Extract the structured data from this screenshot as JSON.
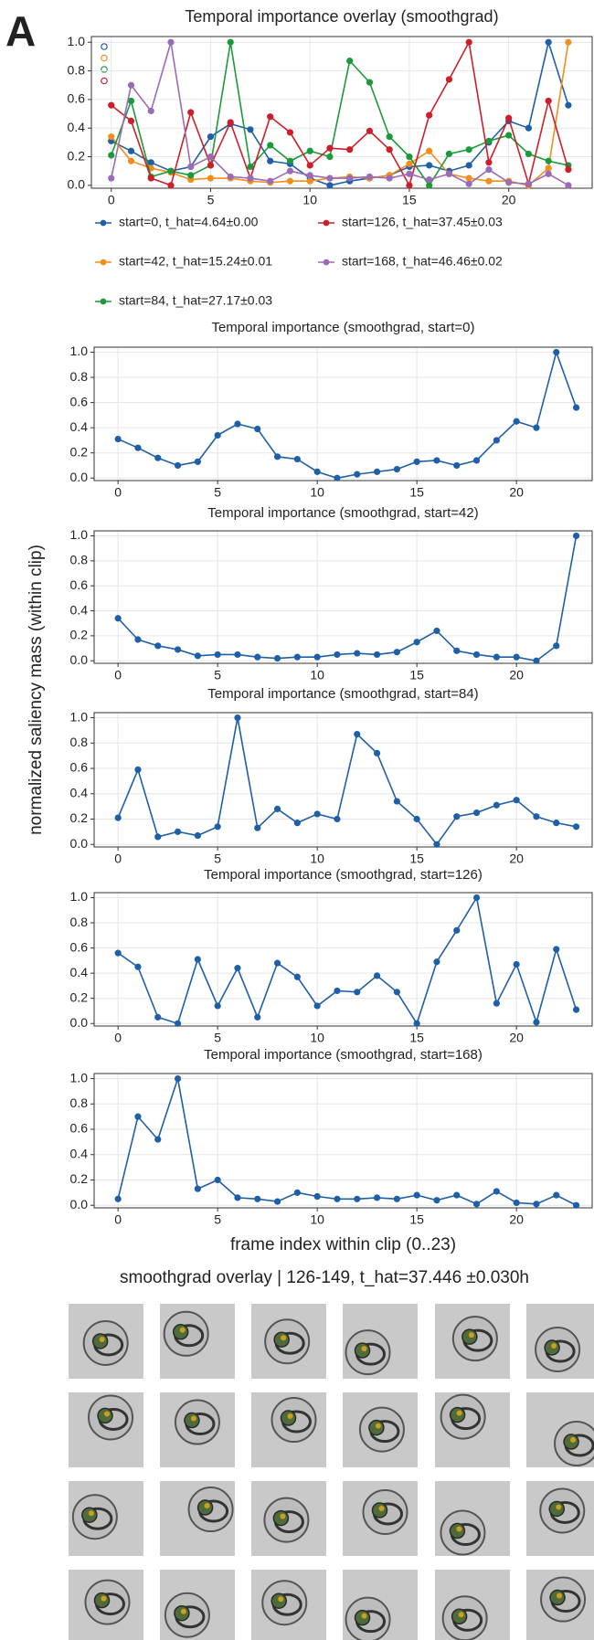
{
  "panel_label": "A",
  "ylabel": "normalized saliency mass (within clip)",
  "image_grid": {
    "title": "smoothgrad overlay | 126-149, t_hat=37.446 ±0.030h"
  },
  "chart_data": [
    {
      "type": "line",
      "title": "Temporal importance overlay (smoothgrad)",
      "x": [
        0,
        1,
        2,
        3,
        4,
        5,
        6,
        7,
        8,
        9,
        10,
        11,
        12,
        13,
        14,
        15,
        16,
        17,
        18,
        19,
        20,
        21,
        22,
        23
      ],
      "series": [
        {
          "name": "start=0, t_hat=4.64±0.00",
          "color": "#1f5fa8",
          "values": [
            0.31,
            0.24,
            0.16,
            0.1,
            0.13,
            0.34,
            0.43,
            0.39,
            0.17,
            0.15,
            0.05,
            0.0,
            0.03,
            0.05,
            0.07,
            0.13,
            0.14,
            0.1,
            0.14,
            0.3,
            0.45,
            0.4,
            1.0,
            0.56
          ]
        },
        {
          "name": "start=42, t_hat=15.24±0.01",
          "color": "#f28e1c",
          "values": [
            0.34,
            0.17,
            0.12,
            0.09,
            0.04,
            0.05,
            0.05,
            0.03,
            0.02,
            0.03,
            0.03,
            0.05,
            0.06,
            0.05,
            0.07,
            0.15,
            0.24,
            0.08,
            0.05,
            0.03,
            0.03,
            0.0,
            0.12,
            1.0
          ]
        },
        {
          "name": "start=84, t_hat=27.17±0.03",
          "color": "#1a9a3a",
          "values": [
            0.21,
            0.59,
            0.06,
            0.1,
            0.07,
            0.14,
            1.0,
            0.13,
            0.28,
            0.17,
            0.24,
            0.2,
            0.87,
            0.72,
            0.34,
            0.2,
            0.0,
            0.22,
            0.25,
            0.31,
            0.35,
            0.22,
            0.17,
            0.14
          ]
        },
        {
          "name": "start=126, t_hat=37.45±0.03",
          "color": "#cc1f2a",
          "values": [
            0.56,
            0.45,
            0.05,
            0.0,
            0.51,
            0.14,
            0.44,
            0.05,
            0.48,
            0.37,
            0.14,
            0.26,
            0.25,
            0.38,
            0.25,
            0.0,
            0.49,
            0.74,
            1.0,
            0.16,
            0.47,
            0.01,
            0.59,
            0.11
          ]
        },
        {
          "name": "start=168, t_hat=46.46±0.02",
          "color": "#9b6bb8",
          "values": [
            0.05,
            0.7,
            0.52,
            1.0,
            0.13,
            0.2,
            0.06,
            0.05,
            0.03,
            0.1,
            0.07,
            0.05,
            0.05,
            0.06,
            0.05,
            0.08,
            0.04,
            0.08,
            0.01,
            0.11,
            0.02,
            0.01,
            0.08,
            0.0
          ]
        }
      ],
      "xlim": [
        -1.0,
        24.2
      ],
      "ylim": [
        -0.02,
        1.04
      ],
      "xticks": [
        0,
        5,
        10,
        15,
        20
      ],
      "yticks": [
        {
          "value": 0,
          "label": "0.0"
        },
        0.2,
        0.4,
        0.6,
        0.8,
        {
          "value": 1,
          "label": "1.0"
        }
      ],
      "grid": true,
      "legend": "bottom"
    },
    {
      "type": "line",
      "title": "Temporal importance (smoothgrad, start=0)",
      "color": "#1f5fa8",
      "x": [
        0,
        1,
        2,
        3,
        4,
        5,
        6,
        7,
        8,
        9,
        10,
        11,
        12,
        13,
        14,
        15,
        16,
        17,
        18,
        19,
        20,
        21,
        22,
        23
      ],
      "values": [
        0.31,
        0.24,
        0.16,
        0.1,
        0.13,
        0.34,
        0.43,
        0.39,
        0.17,
        0.15,
        0.05,
        0.0,
        0.03,
        0.05,
        0.07,
        0.13,
        0.14,
        0.1,
        0.14,
        0.3,
        0.45,
        0.4,
        1.0,
        0.56
      ],
      "xlim": [
        -1.2,
        23.8
      ],
      "ylim": [
        -0.02,
        1.04
      ],
      "xticks": [
        0,
        5,
        10,
        15,
        20
      ],
      "yticks": [
        {
          "value": 0,
          "label": "0.0"
        },
        0.2,
        0.4,
        0.6,
        0.8,
        {
          "value": 1,
          "label": "1.0"
        }
      ],
      "grid": true
    },
    {
      "type": "line",
      "title": "Temporal importance (smoothgrad, start=42)",
      "color": "#1f5fa8",
      "x": [
        0,
        1,
        2,
        3,
        4,
        5,
        6,
        7,
        8,
        9,
        10,
        11,
        12,
        13,
        14,
        15,
        16,
        17,
        18,
        19,
        20,
        21,
        22,
        23
      ],
      "values": [
        0.34,
        0.17,
        0.12,
        0.09,
        0.04,
        0.05,
        0.05,
        0.03,
        0.02,
        0.03,
        0.03,
        0.05,
        0.06,
        0.05,
        0.07,
        0.15,
        0.24,
        0.08,
        0.05,
        0.03,
        0.03,
        0.0,
        0.12,
        1.0
      ],
      "xlim": [
        -1.2,
        23.8
      ],
      "ylim": [
        -0.02,
        1.04
      ],
      "xticks": [
        0,
        5,
        10,
        15,
        20
      ],
      "yticks": [
        {
          "value": 0,
          "label": "0.0"
        },
        0.2,
        0.4,
        0.6,
        0.8,
        {
          "value": 1,
          "label": "1.0"
        }
      ],
      "grid": true
    },
    {
      "type": "line",
      "title": "Temporal importance (smoothgrad, start=84)",
      "color": "#1f5fa8",
      "x": [
        0,
        1,
        2,
        3,
        4,
        5,
        6,
        7,
        8,
        9,
        10,
        11,
        12,
        13,
        14,
        15,
        16,
        17,
        18,
        19,
        20,
        21,
        22,
        23
      ],
      "values": [
        0.21,
        0.59,
        0.06,
        0.1,
        0.07,
        0.14,
        1.0,
        0.13,
        0.28,
        0.17,
        0.24,
        0.2,
        0.87,
        0.72,
        0.34,
        0.2,
        0.0,
        0.22,
        0.25,
        0.31,
        0.35,
        0.22,
        0.17,
        0.14
      ],
      "xlim": [
        -1.2,
        23.8
      ],
      "ylim": [
        -0.02,
        1.04
      ],
      "xticks": [
        0,
        5,
        10,
        15,
        20
      ],
      "yticks": [
        {
          "value": 0,
          "label": "0.0"
        },
        0.2,
        0.4,
        0.6,
        0.8,
        {
          "value": 1,
          "label": "1.0"
        }
      ],
      "grid": true
    },
    {
      "type": "line",
      "title": "Temporal importance (smoothgrad, start=126)",
      "color": "#1f5fa8",
      "x": [
        0,
        1,
        2,
        3,
        4,
        5,
        6,
        7,
        8,
        9,
        10,
        11,
        12,
        13,
        14,
        15,
        16,
        17,
        18,
        19,
        20,
        21,
        22,
        23
      ],
      "values": [
        0.56,
        0.45,
        0.05,
        0.0,
        0.51,
        0.14,
        0.44,
        0.05,
        0.48,
        0.37,
        0.14,
        0.26,
        0.25,
        0.38,
        0.25,
        0.0,
        0.49,
        0.74,
        1.0,
        0.16,
        0.47,
        0.01,
        0.59,
        0.11
      ],
      "xlim": [
        -1.2,
        23.8
      ],
      "ylim": [
        -0.02,
        1.04
      ],
      "xticks": [
        0,
        5,
        10,
        15,
        20
      ],
      "yticks": [
        {
          "value": 0,
          "label": "0.0"
        },
        0.2,
        0.4,
        0.6,
        0.8,
        {
          "value": 1,
          "label": "1.0"
        }
      ],
      "grid": true
    },
    {
      "type": "line",
      "title": "Temporal importance (smoothgrad, start=168)",
      "color": "#1f5fa8",
      "x": [
        0,
        1,
        2,
        3,
        4,
        5,
        6,
        7,
        8,
        9,
        10,
        11,
        12,
        13,
        14,
        15,
        16,
        17,
        18,
        19,
        20,
        21,
        22,
        23
      ],
      "values": [
        0.05,
        0.7,
        0.52,
        1.0,
        0.13,
        0.2,
        0.06,
        0.05,
        0.03,
        0.1,
        0.07,
        0.05,
        0.05,
        0.06,
        0.05,
        0.08,
        0.04,
        0.08,
        0.01,
        0.11,
        0.02,
        0.01,
        0.08,
        0.0
      ],
      "xlim": [
        -1.2,
        23.8
      ],
      "ylim": [
        -0.02,
        1.04
      ],
      "xticks": [
        0,
        5,
        10,
        15,
        20
      ],
      "yticks": [
        {
          "value": 0,
          "label": "0.0"
        },
        0.2,
        0.4,
        0.6,
        0.8,
        {
          "value": 1,
          "label": "1.0"
        }
      ],
      "grid": true,
      "xlabel": "frame index within clip (0..23)"
    }
  ]
}
